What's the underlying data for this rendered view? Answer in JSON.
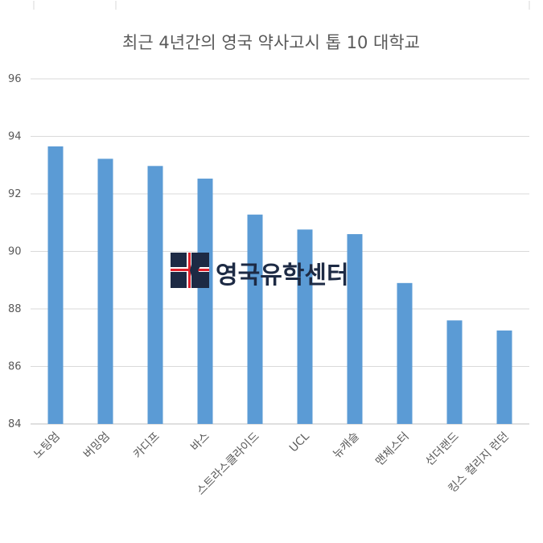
{
  "chart_data": {
    "type": "bar",
    "title": "최근 4년간의 영국 약사고시 톱 10 대학교",
    "xlabel": "",
    "ylabel": "",
    "categories": [
      "노팅엄",
      "버밍엄",
      "카디프",
      "바스",
      "스트라스클라이드",
      "UCL",
      "뉴캐슬",
      "맨체스터",
      "선더랜드",
      "킹스 컬리지 런던"
    ],
    "values": [
      93.65,
      93.22,
      92.97,
      92.53,
      91.28,
      90.76,
      90.6,
      88.9,
      87.6,
      87.25
    ],
    "ylim": [
      84,
      96
    ],
    "yticks": [
      84,
      86,
      88,
      90,
      92,
      94,
      96
    ],
    "grid": true,
    "bar_color": "#5b9bd5"
  },
  "watermark": {
    "text": "영국유학센터",
    "logo_icon": "uk-flag-k-logo-icon",
    "colors": {
      "navy": "#1d2a44",
      "red": "#e0202a"
    }
  }
}
